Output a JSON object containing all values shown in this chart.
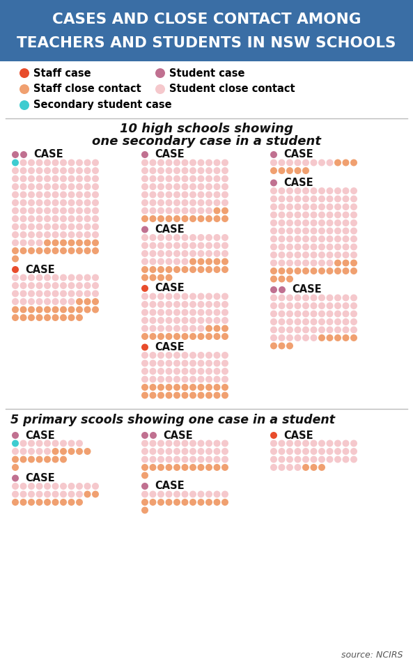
{
  "title_line1": "CASES AND CLOSE CONTACT AMONG",
  "title_line2": "TEACHERS AND STUDENTS IN NSW SCHOOLS",
  "title_bg": "#3a6ea5",
  "title_color": "white",
  "high_school_title_line1": "10 high schools showing",
  "high_school_title_line2": "one secondary case in a student",
  "primary_title": "5 primary scools showing one case in a student",
  "source": "source: NCIRS",
  "colors": {
    "staff_case": "#e84c2b",
    "student_case": "#c07090",
    "staff_contact": "#f0a070",
    "student_contact": "#f5c8cc",
    "secondary_case": "#3eccd0"
  },
  "bg_color": "#ffffff",
  "sep_color": "#bbbbbb"
}
